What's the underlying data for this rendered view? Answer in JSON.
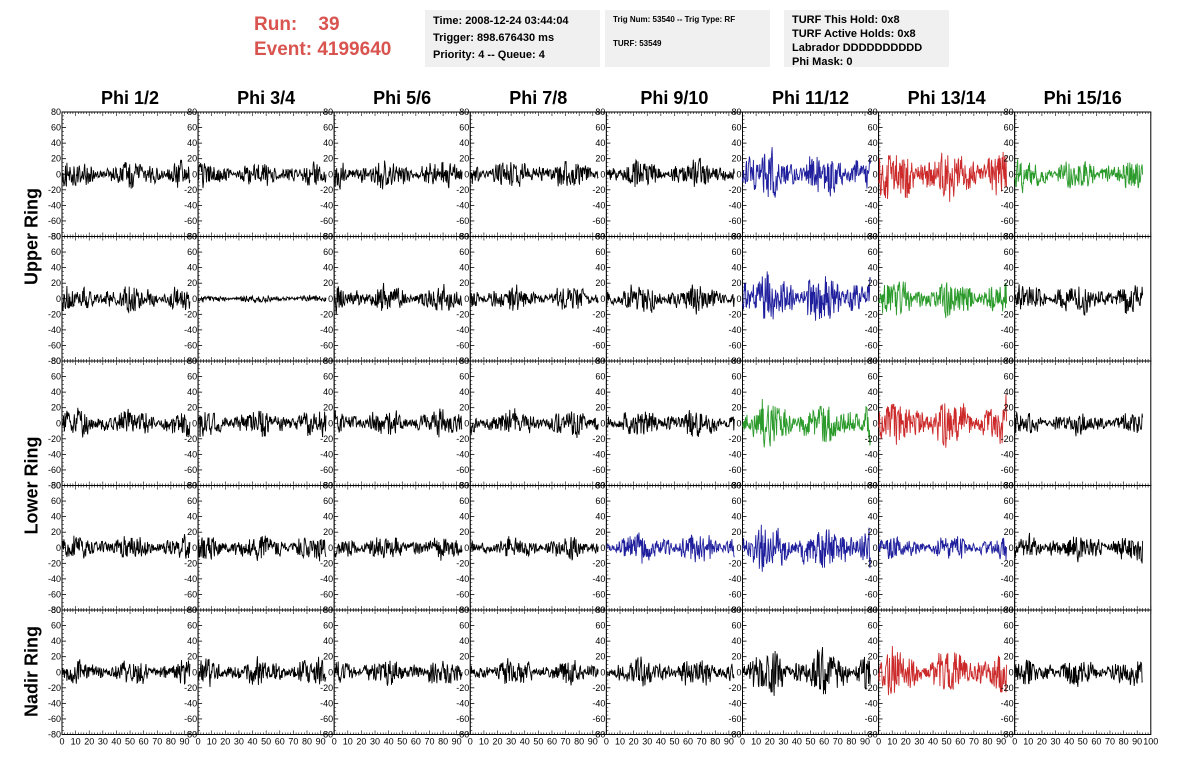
{
  "run": {
    "run_label": "Run:",
    "run_value": "39",
    "event_label": "Event:",
    "event_value": "4199640"
  },
  "info_time": {
    "time": "Time: 2008-12-24 03:44:04",
    "trigger": "Trigger: 898.676430 ms",
    "priority": "Priority: 4 -- Queue: 4"
  },
  "info_trig": {
    "trig": "Trig Num: 53540 -- Trig Type: RF",
    "turf": "TURF: 53549"
  },
  "info_turf": {
    "this_hold": "TURF This Hold: 0x8",
    "active_holds": "TURF Active Holds: 0x8",
    "labrador": "Labrador DDDDDDDDDD",
    "phi_mask": "Phi Mask: 0"
  },
  "colors": {
    "black": "#000000",
    "blue": "#1f1f9e",
    "red": "#cc2a2a",
    "green": "#2a9a2a"
  },
  "chart_data": {
    "type": "line",
    "columns": [
      "Phi 1/2",
      "Phi 3/4",
      "Phi 5/6",
      "Phi 7/8",
      "Phi 9/10",
      "Phi 11/12",
      "Phi 13/14",
      "Phi 15/16"
    ],
    "ring_labels": [
      {
        "name": "Upper Ring",
        "rows": [
          0,
          1
        ]
      },
      {
        "name": "Lower Ring",
        "rows": [
          2,
          3
        ]
      },
      {
        "name": "Nadir Ring",
        "rows": [
          4
        ]
      }
    ],
    "xlim": [
      0,
      100
    ],
    "ylim": [
      -80,
      80
    ],
    "x_ticks": [
      0,
      10,
      20,
      30,
      40,
      50,
      60,
      70,
      80,
      90
    ],
    "x_ticks_last": [
      0,
      10,
      20,
      30,
      40,
      50,
      60,
      70,
      80,
      90,
      100
    ],
    "y_ticks": [
      -80,
      -60,
      -40,
      -20,
      0,
      20,
      40,
      60,
      80
    ],
    "trace_samples": 260,
    "trace_x_max": 94,
    "amplitude": [
      [
        18,
        16,
        18,
        18,
        18,
        30,
        35,
        20
      ],
      [
        18,
        5,
        18,
        16,
        18,
        32,
        24,
        20
      ],
      [
        18,
        18,
        18,
        18,
        18,
        30,
        30,
        14
      ],
      [
        16,
        18,
        16,
        14,
        20,
        30,
        16,
        18
      ],
      [
        16,
        18,
        18,
        16,
        18,
        28,
        30,
        18
      ]
    ],
    "trace_color": [
      [
        "black",
        "black",
        "black",
        "black",
        "black",
        "blue",
        "red",
        "green"
      ],
      [
        "black",
        "black",
        "black",
        "black",
        "black",
        "blue",
        "green",
        "black"
      ],
      [
        "black",
        "black",
        "black",
        "black",
        "black",
        "green",
        "red",
        "black"
      ],
      [
        "black",
        "black",
        "black",
        "black",
        "blue",
        "blue",
        "blue",
        "black"
      ],
      [
        "black",
        "black",
        "black",
        "black",
        "black",
        "black",
        "red",
        "black"
      ]
    ]
  }
}
